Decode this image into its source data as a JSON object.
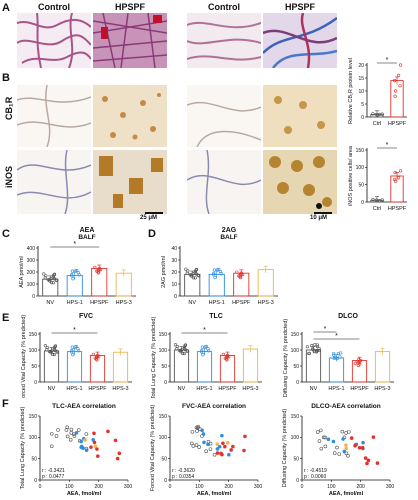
{
  "panel_labels": {
    "A": "A",
    "B": "B",
    "C": "C",
    "D": "D",
    "E": "E",
    "F": "F"
  },
  "headers": {
    "control_left": "Control",
    "hpspf_left": "HPSPF",
    "control_right": "Control",
    "hpspf_right": "HPSPF"
  },
  "row_labels": {
    "cb1r": "CB₁R",
    "inos": "iNOS"
  },
  "scale_bars": {
    "left": "25 μM",
    "right": "10 μM"
  },
  "colors": {
    "hpspf": "#e0332c",
    "hps1": "#2f8de0",
    "hps3": "#f0b54a",
    "nv": "#555555",
    "ctrl": "#555555"
  },
  "chart_data": [
    {
      "id": "cb1r",
      "type": "bar",
      "ylabel": "Relative CB₁R protein level",
      "categories": [
        "Ctrl",
        "HPSPF"
      ],
      "values": [
        1,
        14
      ],
      "ylim": [
        0,
        20
      ],
      "yticks": [
        0,
        5,
        10,
        15,
        20
      ],
      "sig": "*",
      "points": [
        [
          0.8,
          1.1,
          0.9,
          1.2,
          1.0
        ],
        [
          10,
          20,
          16,
          8,
          14,
          12
        ]
      ]
    },
    {
      "id": "inos",
      "type": "bar",
      "ylabel": "iNOS positive cells/ area",
      "categories": [
        "Ctrl",
        "HPSPF"
      ],
      "values": [
        5,
        75
      ],
      "ylim": [
        0,
        150
      ],
      "yticks": [
        0,
        50,
        100,
        150
      ],
      "sig": "*",
      "points": [
        [
          3,
          6,
          5,
          7,
          4
        ],
        [
          60,
          90,
          70,
          85,
          65
        ]
      ]
    },
    {
      "id": "aea",
      "type": "bar",
      "title": "AEA",
      "subtitle": "BALF",
      "ylabel": "AEA pmol/ml",
      "categories": [
        "NV",
        "HPS-1",
        "HPSPF",
        "HPS-3"
      ],
      "values": [
        140,
        170,
        230,
        190
      ],
      "ylim": [
        0,
        400
      ],
      "yticks": [
        0,
        100,
        200,
        300,
        400
      ],
      "sig": "*",
      "sig_span": [
        0,
        2
      ]
    },
    {
      "id": "2ag",
      "type": "bar",
      "title": "2AG",
      "subtitle": "BALF",
      "ylabel": "2AG pmol/ml",
      "categories": [
        "NV",
        "HPS-1",
        "HPSPF",
        "HPS-3"
      ],
      "values": [
        18,
        18,
        19,
        22
      ],
      "ylim": [
        0,
        40
      ],
      "yticks": [
        0,
        10,
        20,
        30,
        40
      ]
    },
    {
      "id": "fvc",
      "type": "bar",
      "title": "FVC",
      "ylabel": "Forced Vital Capacity (% predicted)",
      "categories": [
        "NV",
        "HPS-1",
        "HPSPF",
        "HPS-3"
      ],
      "values": [
        97,
        95,
        83,
        93
      ],
      "ylim": [
        0,
        150
      ],
      "yticks": [
        0,
        50,
        100,
        150
      ],
      "sig": "*",
      "sig_span": [
        0,
        2
      ]
    },
    {
      "id": "tlc",
      "type": "bar",
      "title": "TLC",
      "ylabel": "Total Lung Capacity (% predicted)",
      "categories": [
        "NV",
        "HPS-1",
        "HPSPF",
        "HPS-3"
      ],
      "values": [
        100,
        95,
        83,
        103
      ],
      "ylim": [
        0,
        150
      ],
      "yticks": [
        0,
        50,
        100,
        150
      ],
      "sig": "*",
      "sig_span": [
        0,
        2
      ]
    },
    {
      "id": "dlco",
      "type": "bar",
      "title": "DLCO",
      "ylabel": "Diffusing Capacity (% predicted)",
      "categories": [
        "NV",
        "HPS-1",
        "HPSPF",
        "HPS-3"
      ],
      "values": [
        100,
        75,
        67,
        95
      ],
      "ylim": [
        0,
        150
      ],
      "yticks": [
        0,
        50,
        100,
        150
      ],
      "sig": "*",
      "sig_pairs": [
        [
          0,
          1
        ],
        [
          0,
          2
        ]
      ]
    },
    {
      "id": "tlc_aea",
      "type": "scatter",
      "title": "TLC-AEA correlation",
      "xlabel": "AEA, fmol/ml",
      "ylabel": "Total Lung Capacity (% predicted)",
      "xlim": [
        0,
        300
      ],
      "ylim": [
        0,
        150
      ],
      "xticks": [
        0,
        100,
        200,
        300
      ],
      "yticks": [
        0,
        50,
        100,
        150
      ],
      "stats": [
        "r : -0.3421",
        "p : 0.0477"
      ]
    },
    {
      "id": "fvc_aea",
      "type": "scatter",
      "title": "FVC-AEA correlation",
      "xlabel": "AEA, fmol/ml",
      "ylabel": "Forced Vital Capacity (% predicted)",
      "xlim": [
        0,
        300
      ],
      "ylim": [
        0,
        150
      ],
      "xticks": [
        0,
        100,
        200,
        300
      ],
      "yticks": [
        0,
        50,
        100,
        150
      ],
      "stats": [
        "r : -0.3620",
        "p : 0.0354"
      ]
    },
    {
      "id": "dlco_aea",
      "type": "scatter",
      "title": "DLCO-AEA correlation",
      "xlabel": "AEA, fmol/ml",
      "ylabel": "Diffusing Capacity (% predicted)",
      "xlim": [
        0,
        300
      ],
      "ylim": [
        0,
        150
      ],
      "xticks": [
        0,
        100,
        200,
        300
      ],
      "yticks": [
        0,
        50,
        100,
        150
      ],
      "stats": [
        "r : -0.4519",
        "p : 0.0060"
      ]
    }
  ]
}
